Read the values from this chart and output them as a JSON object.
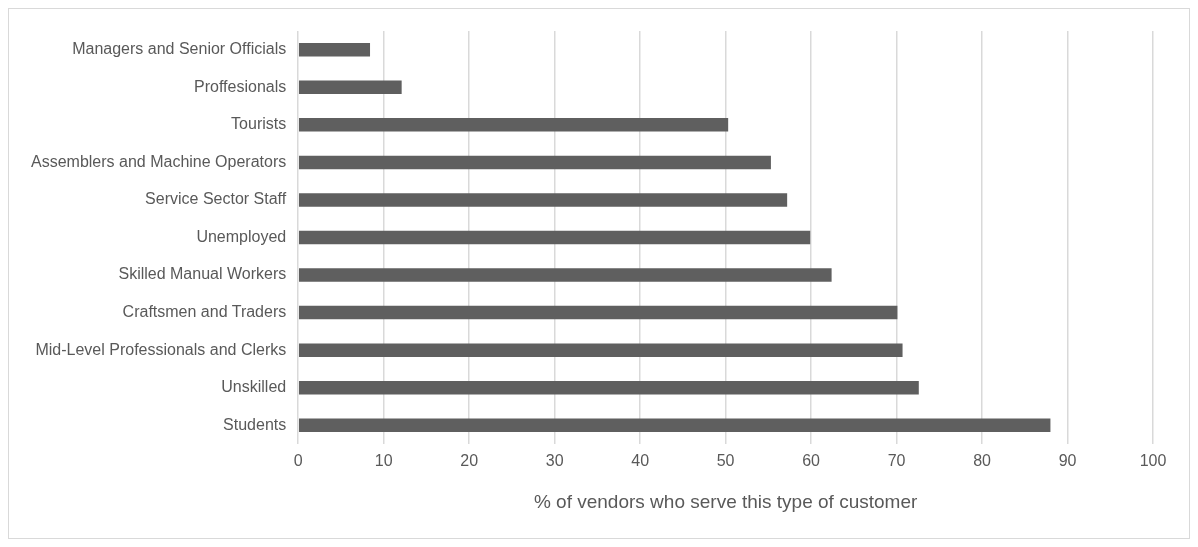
{
  "chart_data": {
    "type": "bar",
    "orientation": "horizontal",
    "xlabel": "% of vendors who serve this type of customer",
    "categories": [
      "Managers and Senior Officials",
      "Proffesionals",
      "Tourists",
      "Assemblers and Machine Operators",
      "Service Sector Staff",
      "Unemployed",
      "Skilled Manual Workers",
      "Craftsmen and Traders",
      "Mid-Level Professionals and Clerks",
      "Unskilled",
      "Students"
    ],
    "values": [
      8.4,
      12.1,
      50.3,
      55.3,
      57.2,
      59.9,
      62.4,
      70.1,
      70.7,
      72.6,
      88.0
    ],
    "color": "#5f5f5f",
    "xlim": [
      0,
      100
    ],
    "xticks": [
      0,
      10,
      20,
      30,
      40,
      50,
      60,
      70,
      80,
      90,
      100
    ],
    "grid": "x",
    "legend": false
  }
}
